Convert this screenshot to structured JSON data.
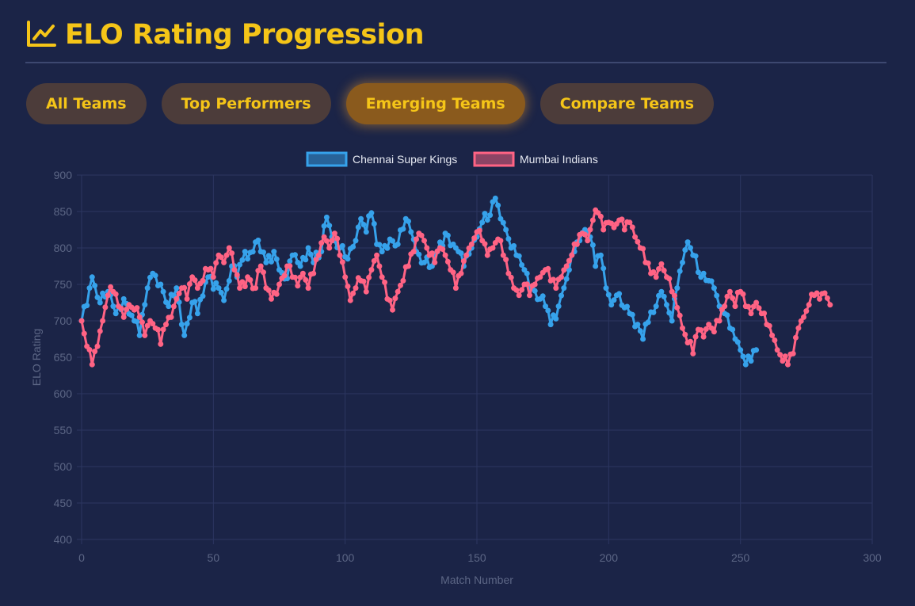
{
  "header": {
    "title": "ELO Rating Progression",
    "icon": "line-chart-icon",
    "accent": "#f5c518"
  },
  "tabs": [
    {
      "label": "All Teams",
      "active": false
    },
    {
      "label": "Top Performers",
      "active": false
    },
    {
      "label": "Emerging Teams",
      "active": true
    },
    {
      "label": "Compare Teams",
      "active": false
    }
  ],
  "chart_data": {
    "type": "line",
    "title": "",
    "xlabel": "Match Number",
    "ylabel": "ELO Rating",
    "xlim": [
      0,
      300
    ],
    "ylim": [
      400,
      900
    ],
    "xticks": [
      0,
      50,
      100,
      150,
      200,
      250,
      300
    ],
    "yticks": [
      400,
      450,
      500,
      550,
      600,
      650,
      700,
      750,
      800,
      850,
      900
    ],
    "grid": true,
    "legend_position": "top-center",
    "series": [
      {
        "name": "Chennai Super Kings",
        "color": "#36a2eb",
        "points": [
          [
            0,
            700
          ],
          [
            3,
            745
          ],
          [
            4,
            760
          ],
          [
            7,
            725
          ],
          [
            10,
            740
          ],
          [
            13,
            710
          ],
          [
            16,
            730
          ],
          [
            20,
            700
          ],
          [
            22,
            680
          ],
          [
            25,
            745
          ],
          [
            27,
            765
          ],
          [
            30,
            750
          ],
          [
            33,
            720
          ],
          [
            36,
            745
          ],
          [
            38,
            695
          ],
          [
            39,
            680
          ],
          [
            42,
            725
          ],
          [
            44,
            710
          ],
          [
            48,
            760
          ],
          [
            52,
            745
          ],
          [
            54,
            728
          ],
          [
            57,
            775
          ],
          [
            59,
            760
          ],
          [
            62,
            795
          ],
          [
            63,
            785
          ],
          [
            66,
            808
          ],
          [
            68,
            795
          ],
          [
            70,
            780
          ],
          [
            73,
            795
          ],
          [
            75,
            770
          ],
          [
            78,
            758
          ],
          [
            80,
            790
          ],
          [
            83,
            775
          ],
          [
            86,
            800
          ],
          [
            88,
            780
          ],
          [
            91,
            795
          ],
          [
            92,
            830
          ],
          [
            93,
            842
          ],
          [
            95,
            815
          ],
          [
            98,
            800
          ],
          [
            101,
            785
          ],
          [
            104,
            810
          ],
          [
            106,
            840
          ],
          [
            108,
            822
          ],
          [
            110,
            848
          ],
          [
            112,
            805
          ],
          [
            114,
            795
          ],
          [
            117,
            812
          ],
          [
            120,
            805
          ],
          [
            123,
            840
          ],
          [
            125,
            822
          ],
          [
            127,
            795
          ],
          [
            130,
            780
          ],
          [
            133,
            775
          ],
          [
            135,
            795
          ],
          [
            138,
            820
          ],
          [
            141,
            805
          ],
          [
            143,
            795
          ],
          [
            145,
            775
          ],
          [
            148,
            800
          ],
          [
            150,
            815
          ],
          [
            152,
            835
          ],
          [
            155,
            845
          ],
          [
            157,
            868
          ],
          [
            159,
            840
          ],
          [
            161,
            825
          ],
          [
            163,
            800
          ],
          [
            165,
            790
          ],
          [
            168,
            770
          ],
          [
            171,
            745
          ],
          [
            174,
            730
          ],
          [
            176,
            720
          ],
          [
            178,
            695
          ],
          [
            181,
            720
          ],
          [
            183,
            745
          ],
          [
            185,
            770
          ],
          [
            187,
            795
          ],
          [
            189,
            810
          ],
          [
            191,
            825
          ],
          [
            193,
            815
          ],
          [
            195,
            775
          ],
          [
            197,
            790
          ],
          [
            199,
            745
          ],
          [
            201,
            722
          ],
          [
            203,
            735
          ],
          [
            206,
            718
          ],
          [
            208,
            710
          ],
          [
            211,
            695
          ],
          [
            213,
            675
          ],
          [
            215,
            698
          ],
          [
            218,
            720
          ],
          [
            220,
            740
          ],
          [
            222,
            722
          ],
          [
            224,
            700
          ],
          [
            226,
            745
          ],
          [
            228,
            780
          ],
          [
            230,
            808
          ],
          [
            232,
            790
          ],
          [
            235,
            760
          ],
          [
            238,
            755
          ],
          [
            240,
            745
          ],
          [
            242,
            720
          ],
          [
            244,
            710
          ],
          [
            246,
            690
          ],
          [
            248,
            675
          ],
          [
            250,
            660
          ],
          [
            252,
            640
          ],
          [
            254,
            645
          ],
          [
            256,
            660
          ]
        ]
      },
      {
        "name": "Mumbai Indians",
        "color": "#ff6384",
        "points": [
          [
            0,
            700
          ],
          [
            2,
            665
          ],
          [
            4,
            640
          ],
          [
            6,
            665
          ],
          [
            8,
            700
          ],
          [
            10,
            735
          ],
          [
            12,
            740
          ],
          [
            14,
            720
          ],
          [
            16,
            705
          ],
          [
            18,
            722
          ],
          [
            20,
            715
          ],
          [
            22,
            705
          ],
          [
            24,
            680
          ],
          [
            26,
            700
          ],
          [
            28,
            690
          ],
          [
            30,
            668
          ],
          [
            32,
            695
          ],
          [
            34,
            705
          ],
          [
            36,
            730
          ],
          [
            38,
            745
          ],
          [
            40,
            730
          ],
          [
            42,
            760
          ],
          [
            44,
            745
          ],
          [
            46,
            755
          ],
          [
            48,
            770
          ],
          [
            50,
            760
          ],
          [
            52,
            790
          ],
          [
            54,
            780
          ],
          [
            56,
            800
          ],
          [
            58,
            770
          ],
          [
            60,
            745
          ],
          [
            63,
            760
          ],
          [
            66,
            745
          ],
          [
            68,
            775
          ],
          [
            70,
            745
          ],
          [
            72,
            730
          ],
          [
            75,
            750
          ],
          [
            78,
            775
          ],
          [
            80,
            760
          ],
          [
            82,
            748
          ],
          [
            84,
            765
          ],
          [
            86,
            745
          ],
          [
            88,
            765
          ],
          [
            90,
            790
          ],
          [
            92,
            815
          ],
          [
            94,
            800
          ],
          [
            96,
            820
          ],
          [
            98,
            790
          ],
          [
            100,
            760
          ],
          [
            102,
            728
          ],
          [
            104,
            745
          ],
          [
            106,
            755
          ],
          [
            108,
            740
          ],
          [
            110,
            770
          ],
          [
            112,
            790
          ],
          [
            114,
            760
          ],
          [
            116,
            730
          ],
          [
            118,
            715
          ],
          [
            120,
            740
          ],
          [
            122,
            755
          ],
          [
            124,
            775
          ],
          [
            126,
            795
          ],
          [
            128,
            820
          ],
          [
            130,
            810
          ],
          [
            132,
            790
          ],
          [
            134,
            780
          ],
          [
            136,
            800
          ],
          [
            138,
            790
          ],
          [
            140,
            770
          ],
          [
            142,
            745
          ],
          [
            144,
            765
          ],
          [
            146,
            790
          ],
          [
            148,
            805
          ],
          [
            150,
            822
          ],
          [
            152,
            810
          ],
          [
            154,
            790
          ],
          [
            156,
            800
          ],
          [
            158,
            812
          ],
          [
            160,
            790
          ],
          [
            162,
            765
          ],
          [
            164,
            745
          ],
          [
            166,
            735
          ],
          [
            168,
            750
          ],
          [
            170,
            735
          ],
          [
            172,
            750
          ],
          [
            174,
            760
          ],
          [
            176,
            770
          ],
          [
            178,
            755
          ],
          [
            180,
            745
          ],
          [
            182,
            760
          ],
          [
            184,
            775
          ],
          [
            186,
            790
          ],
          [
            188,
            805
          ],
          [
            190,
            820
          ],
          [
            192,
            810
          ],
          [
            194,
            838
          ],
          [
            196,
            848
          ],
          [
            198,
            825
          ],
          [
            200,
            835
          ],
          [
            202,
            828
          ],
          [
            204,
            838
          ],
          [
            206,
            825
          ],
          [
            208,
            835
          ],
          [
            210,
            815
          ],
          [
            212,
            800
          ],
          [
            214,
            780
          ],
          [
            216,
            765
          ],
          [
            218,
            760
          ],
          [
            220,
            778
          ],
          [
            222,
            760
          ],
          [
            224,
            740
          ],
          [
            226,
            718
          ],
          [
            228,
            690
          ],
          [
            230,
            670
          ],
          [
            232,
            655
          ],
          [
            234,
            688
          ],
          [
            236,
            678
          ],
          [
            238,
            695
          ],
          [
            240,
            685
          ],
          [
            242,
            700
          ],
          [
            244,
            720
          ],
          [
            246,
            740
          ],
          [
            248,
            720
          ],
          [
            250,
            740
          ],
          [
            252,
            720
          ],
          [
            254,
            710
          ],
          [
            256,
            725
          ],
          [
            258,
            710
          ],
          [
            260,
            695
          ],
          [
            262,
            680
          ],
          [
            264,
            660
          ],
          [
            266,
            645
          ],
          [
            268,
            640
          ],
          [
            270,
            655
          ],
          [
            272,
            690
          ],
          [
            274,
            705
          ],
          [
            276,
            722
          ],
          [
            278,
            735
          ],
          [
            280,
            730
          ],
          [
            282,
            738
          ],
          [
            284,
            722
          ]
        ]
      }
    ]
  }
}
